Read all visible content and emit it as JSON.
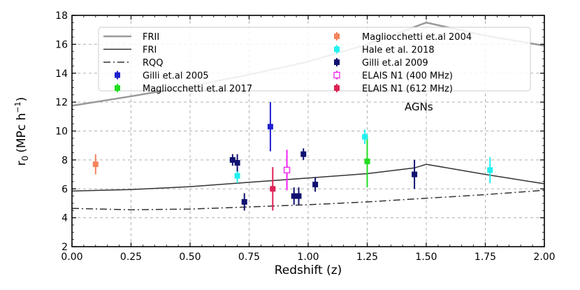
{
  "chart_data": {
    "type": "scatter",
    "title": "",
    "xlabel": "Redshift (z)",
    "ylabel": "r",
    "ylabel_sub": "0",
    "ylabel_units": "(MPc h",
    "ylabel_sup": "−1",
    "ylabel_close": ")",
    "xlim": [
      0.0,
      2.0
    ],
    "ylim": [
      2,
      18
    ],
    "xticks": [
      "0.00",
      "0.25",
      "0.50",
      "0.75",
      "1.00",
      "1.25",
      "1.50",
      "1.75",
      "2.00"
    ],
    "yticks": [
      "2",
      "4",
      "6",
      "8",
      "10",
      "12",
      "14",
      "16",
      "18"
    ],
    "grid": true,
    "legend_position": "top",
    "annotation": "AGNs",
    "lines": [
      {
        "name": "FRII",
        "color": "#999999",
        "style": "solid",
        "width": 2.5,
        "x": [
          0.0,
          0.25,
          0.5,
          0.75,
          1.0,
          1.25,
          1.5,
          1.75,
          2.0
        ],
        "y": [
          11.75,
          12.4,
          13.1,
          13.9,
          14.8,
          16.0,
          17.5,
          16.6,
          15.9
        ]
      },
      {
        "name": "FRI",
        "color": "#333333",
        "style": "solid",
        "width": 1.5,
        "x": [
          0.0,
          0.25,
          0.5,
          0.75,
          1.0,
          1.25,
          1.45,
          1.5,
          1.75,
          2.0
        ],
        "y": [
          5.85,
          5.95,
          6.15,
          6.45,
          6.75,
          7.05,
          7.45,
          7.7,
          7.0,
          6.35
        ]
      },
      {
        "name": "RQQ",
        "color": "#333333",
        "style": "dashdot",
        "width": 1.5,
        "x": [
          0.0,
          0.25,
          0.5,
          0.75,
          1.0,
          1.25,
          1.5,
          1.75,
          2.0
        ],
        "y": [
          4.65,
          4.55,
          4.6,
          4.75,
          4.9,
          5.1,
          5.35,
          5.6,
          5.9
        ]
      }
    ],
    "series": [
      {
        "name": "Gilli et.al 2005",
        "color": "#1f1fd0",
        "marker": "filled",
        "points": [
          {
            "x": 0.84,
            "y": 10.3,
            "yerr_low": 1.7,
            "yerr_high": 1.7
          }
        ]
      },
      {
        "name": "Magliocchetti et.al 2017",
        "color": "#22dd22",
        "marker": "filled",
        "points": [
          {
            "x": 1.25,
            "y": 7.9,
            "yerr_low": 1.8,
            "yerr_high": 1.8
          }
        ]
      },
      {
        "name": "Magliocchetti et.al 2004",
        "color": "#f4845f",
        "marker": "filled",
        "points": [
          {
            "x": 0.1,
            "y": 7.7,
            "yerr_low": 0.7,
            "yerr_high": 0.7
          }
        ]
      },
      {
        "name": "Hale et al. 2018",
        "color": "#22f0f0",
        "marker": "filled",
        "points": [
          {
            "x": 0.7,
            "y": 6.9,
            "yerr_low": 0.5,
            "yerr_high": 0.5
          },
          {
            "x": 1.24,
            "y": 9.6,
            "yerr_low": 0.5,
            "yerr_high": 0.5
          },
          {
            "x": 1.77,
            "y": 7.3,
            "yerr_low": 0.9,
            "yerr_high": 0.9
          }
        ]
      },
      {
        "name": "Gilli et.al 2009",
        "color": "#101070",
        "marker": "filled",
        "points": [
          {
            "x": 0.68,
            "y": 8.0,
            "yerr_low": 0.4,
            "yerr_high": 0.4
          },
          {
            "x": 0.7,
            "y": 7.8,
            "yerr_low": 0.6,
            "yerr_high": 0.6
          },
          {
            "x": 0.73,
            "y": 5.1,
            "yerr_low": 0.6,
            "yerr_high": 0.6
          },
          {
            "x": 0.94,
            "y": 5.5,
            "yerr_low": 0.6,
            "yerr_high": 0.6
          },
          {
            "x": 0.96,
            "y": 5.5,
            "yerr_low": 0.6,
            "yerr_high": 0.6
          },
          {
            "x": 0.98,
            "y": 8.4,
            "yerr_low": 0.4,
            "yerr_high": 0.4
          },
          {
            "x": 1.03,
            "y": 6.3,
            "yerr_low": 0.5,
            "yerr_high": 0.5
          },
          {
            "x": 1.45,
            "y": 7.0,
            "yerr_low": 1.0,
            "yerr_high": 1.0
          }
        ]
      },
      {
        "name": "ELAIS N1 (400 MHz)",
        "color": "#ee22ee",
        "marker": "open",
        "points": [
          {
            "x": 0.91,
            "y": 7.3,
            "yerr_low": 1.4,
            "yerr_high": 1.4
          }
        ]
      },
      {
        "name": "ELAIS N1 (612 MHz)",
        "color": "#dd2255",
        "marker": "filled",
        "points": [
          {
            "x": 0.85,
            "y": 6.0,
            "yerr_low": 1.5,
            "yerr_high": 1.5
          }
        ]
      }
    ],
    "legend": {
      "columns": [
        [
          "FRII",
          "FRI",
          "RQQ",
          "Gilli et.al 2005",
          "Magliocchetti et.al 2017"
        ],
        [
          "Magliocchetti et.al 2004",
          "Hale et al. 2018",
          "Gilli et.al 2009",
          "ELAIS N1 (400 MHz)",
          "ELAIS N1 (612 MHz)"
        ]
      ]
    }
  }
}
